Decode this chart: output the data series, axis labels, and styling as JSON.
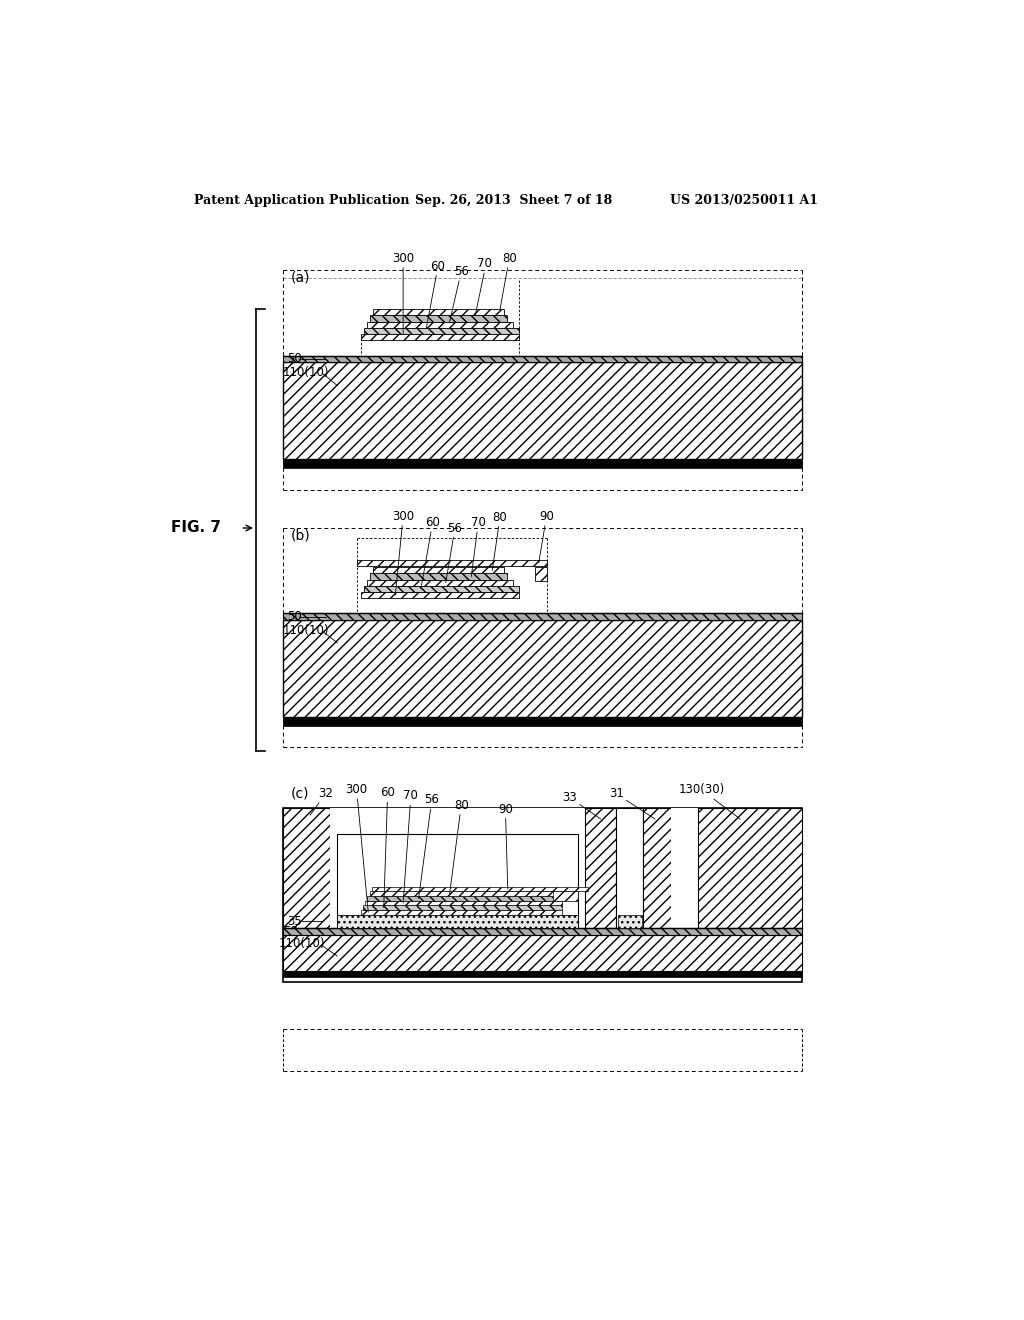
{
  "bg_color": "#ffffff",
  "header_left": "Patent Application Publication",
  "header_center": "Sep. 26, 2013  Sheet 7 of 18",
  "header_right": "US 2013/0250011 A1",
  "fig_label": "FIG. 7"
}
